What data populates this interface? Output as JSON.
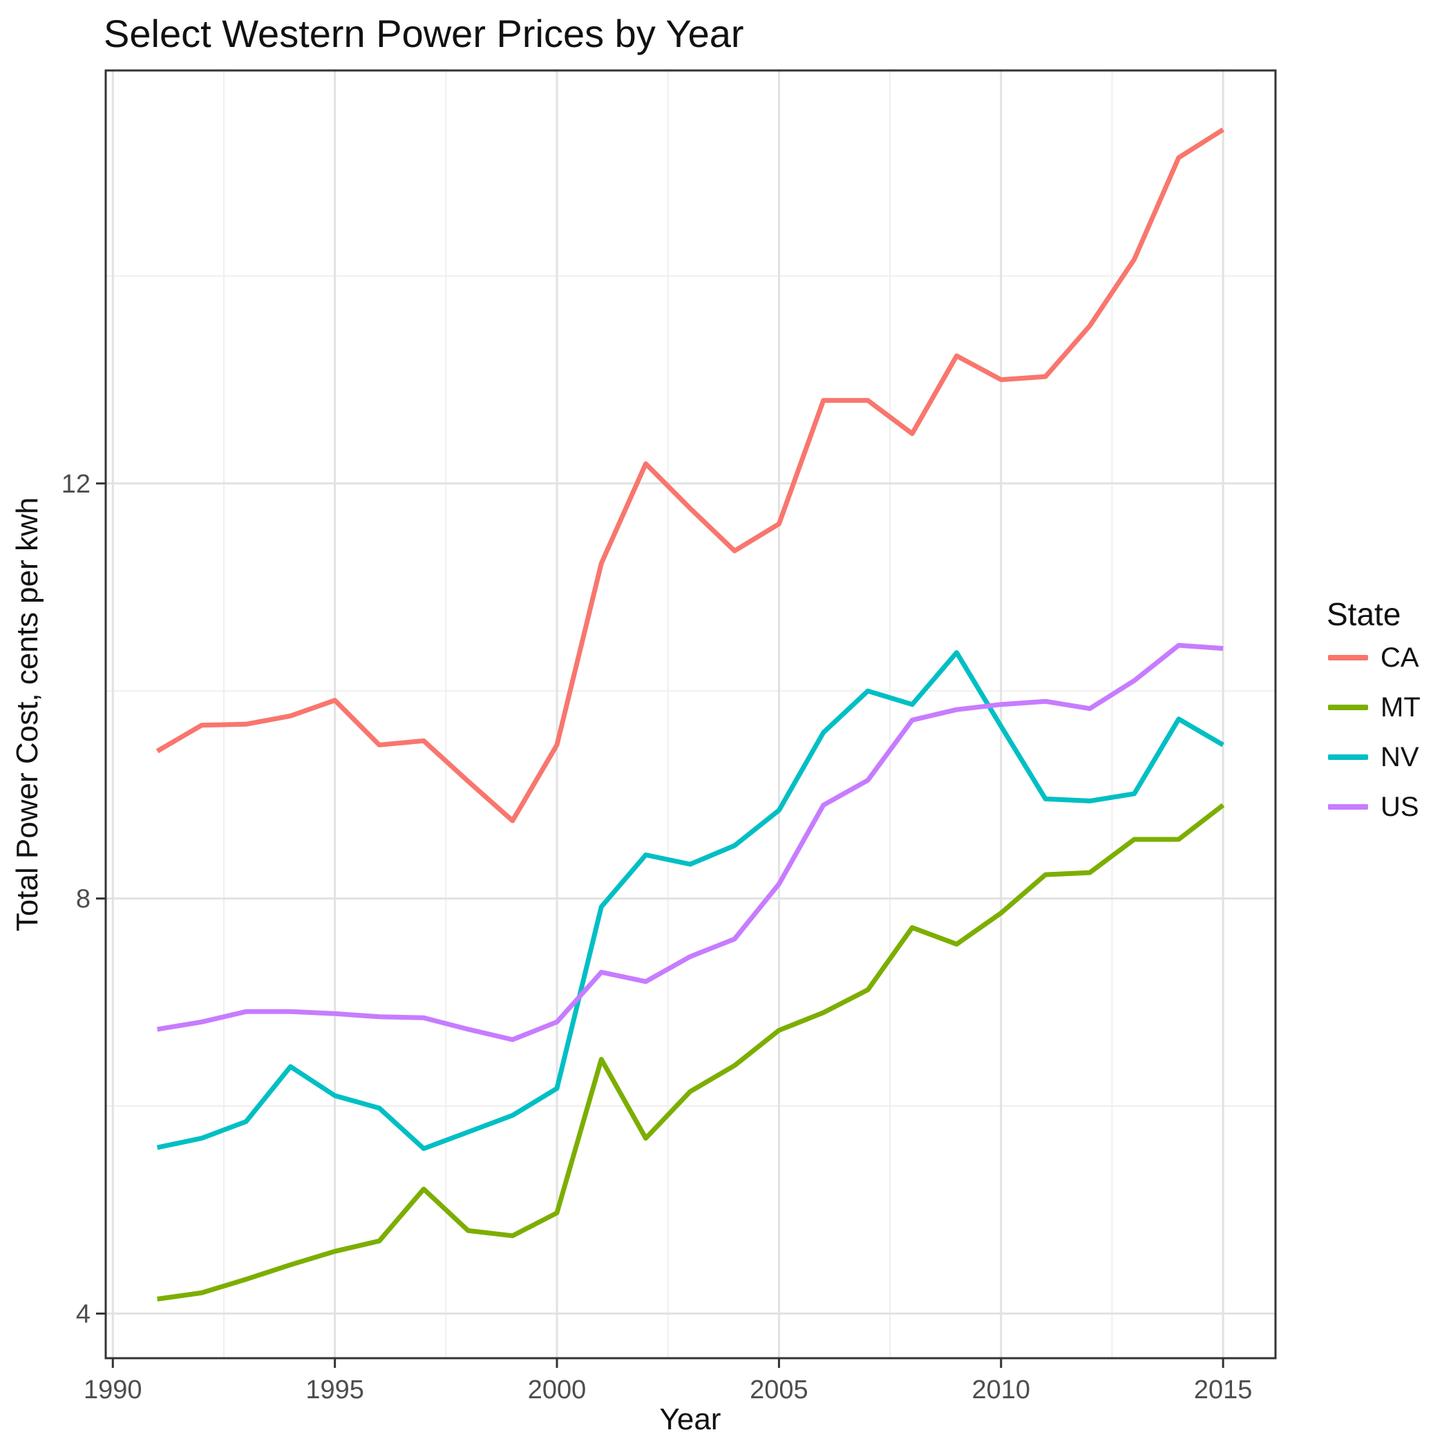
{
  "chart_data": {
    "type": "line",
    "title": "Select Western Power Prices by Year",
    "xlabel": "Year",
    "ylabel": "Total Power Cost, cents per kwh",
    "legend_title": "State",
    "legend_position": "right",
    "grid": true,
    "x": [
      1991,
      1992,
      1993,
      1994,
      1995,
      1996,
      1997,
      1998,
      1999,
      2000,
      2001,
      2002,
      2003,
      2004,
      2005,
      2006,
      2007,
      2008,
      2009,
      2010,
      2011,
      2012,
      2013,
      2014,
      2015
    ],
    "series": [
      {
        "name": "CA",
        "color": "#F8766D",
        "values": [
          9.42,
          9.67,
          9.68,
          9.76,
          9.91,
          9.48,
          9.52,
          9.13,
          8.75,
          9.48,
          11.23,
          12.19,
          11.76,
          11.35,
          11.61,
          12.8,
          12.8,
          12.48,
          13.23,
          13.0,
          13.03,
          13.52,
          14.16,
          15.14,
          15.41
        ]
      },
      {
        "name": "MT",
        "color": "#7CAE00",
        "values": [
          4.14,
          4.2,
          4.33,
          4.47,
          4.6,
          4.7,
          5.2,
          4.8,
          4.75,
          4.97,
          6.45,
          5.69,
          6.14,
          6.39,
          6.73,
          6.9,
          7.12,
          7.72,
          7.56,
          7.86,
          8.23,
          8.25,
          8.57,
          8.57,
          8.9
        ]
      },
      {
        "name": "NV",
        "color": "#00BFC4",
        "values": [
          5.6,
          5.69,
          5.85,
          6.38,
          6.1,
          5.98,
          5.59,
          5.75,
          5.91,
          6.17,
          7.92,
          8.42,
          8.33,
          8.51,
          8.85,
          9.6,
          10.0,
          9.87,
          10.37,
          9.66,
          8.96,
          8.94,
          9.01,
          9.73,
          9.48
        ]
      },
      {
        "name": "US",
        "color": "#C77CFF",
        "values": [
          6.74,
          6.81,
          6.91,
          6.91,
          6.89,
          6.86,
          6.85,
          6.74,
          6.64,
          6.81,
          7.29,
          7.2,
          7.44,
          7.61,
          8.14,
          8.9,
          9.14,
          9.72,
          9.82,
          9.87,
          9.9,
          9.83,
          10.1,
          10.44,
          10.41
        ]
      }
    ],
    "x_ticks": [
      1990,
      1995,
      2000,
      2005,
      2010,
      2015
    ],
    "y_ticks": [
      4,
      8,
      12
    ],
    "x_minor_ticks": [
      1992.5,
      1997.5,
      2002.5,
      2007.5,
      2012.5
    ],
    "y_minor_ticks": [
      6,
      10,
      14
    ],
    "xlim": [
      1989.84,
      2016.18
    ],
    "ylim": [
      3.57,
      15.98
    ]
  },
  "style_tokens": {
    "panel_border_color": "#333333",
    "major_grid_color": "#E2E2E2",
    "minor_grid_color": "#EFEFEF",
    "tick_mark_color": "#333333",
    "tick_label_color": "#4D4D4D"
  }
}
